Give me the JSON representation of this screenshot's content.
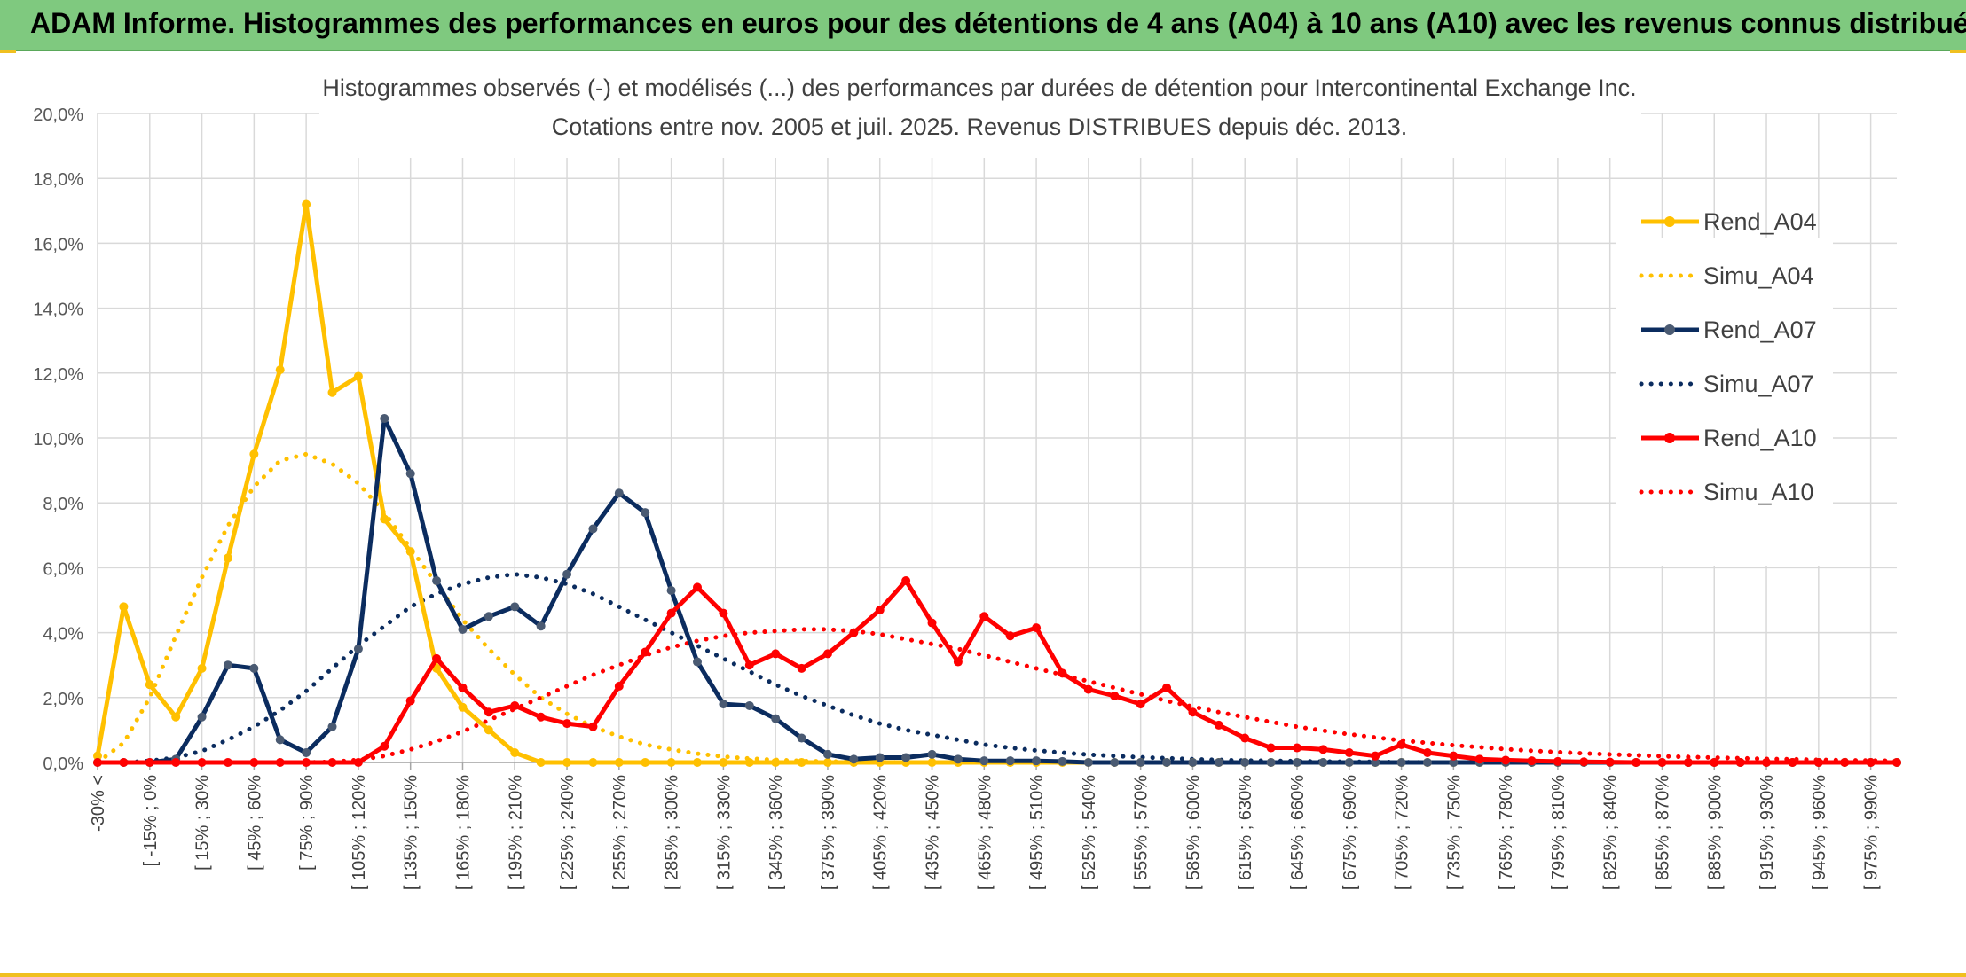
{
  "banner": {
    "title": "ADAM Informe. Histogrammes des performances en euros pour des détentions de 4 ans (A04) à 10 ans (A10) avec les revenus connus distribués"
  },
  "colors": {
    "banner_bg": "#7fc97f",
    "a04": "#ffc000",
    "a07": "#0b2c5f",
    "a10": "#ff0000",
    "a07_marker": "#4a5a72",
    "grid": "#d9d9d9",
    "accent": "#f0c020"
  },
  "chart_data": {
    "type": "line",
    "title": "Histogrammes observés (-) et modélisés (...) des performances par durées de détention pour Intercontinental Exchange Inc.",
    "subtitle": "Cotations entre nov. 2005 et juil. 2025. Revenus DISTRIBUES depuis déc. 2013.",
    "xlabel": "",
    "ylabel": "",
    "ylim": [
      0,
      20
    ],
    "yticks": [
      "0,0%",
      "2,0%",
      "4,0%",
      "6,0%",
      "8,0%",
      "10,0%",
      "12,0%",
      "14,0%",
      "16,0%",
      "18,0%",
      "20,0%"
    ],
    "grid": true,
    "legend_position": "right",
    "x_tick_labels": [
      "-30% <",
      "[ -15% ; 0%",
      "[ 15% ; 30%",
      "[ 45% ; 60%",
      "[ 75% ; 90%",
      "[ 105% ; 120%",
      "[ 135% ; 150%",
      "[ 165% ; 180%",
      "[ 195% ; 210%",
      "[ 225% ; 240%",
      "[ 255% ; 270%",
      "[ 285% ; 300%",
      "[ 315% ; 330%",
      "[ 345% ; 360%",
      "[ 375% ; 390%",
      "[ 405% ; 420%",
      "[ 435% ; 450%",
      "[ 465% ; 480%",
      "[ 495% ; 510%",
      "[ 525% ; 540%",
      "[ 555% ; 570%",
      "[ 585% ; 600%",
      "[ 615% ; 630%",
      "[ 645% ; 660%",
      "[ 675% ; 690%",
      "[ 705% ; 720%",
      "[ 735% ; 750%",
      "[ 765% ; 780%",
      "[ 795% ; 810%",
      "[ 825% ; 840%",
      "[ 855% ; 870%",
      "[ 885% ; 900%",
      "[ 915% ; 930%",
      "[ 945% ; 960%",
      "[ 975% ; 990%"
    ],
    "series": [
      {
        "name": "Rend_A04",
        "style": "solid",
        "color": "#ffc000",
        "values": [
          0.2,
          4.8,
          2.4,
          1.4,
          2.9,
          6.3,
          9.5,
          12.1,
          17.2,
          11.4,
          11.9,
          7.5,
          6.5,
          2.9,
          1.7,
          1.0,
          0.3,
          0.0,
          0,
          0,
          0,
          0,
          0,
          0,
          0,
          0,
          0,
          0,
          0,
          0,
          0,
          0,
          0,
          0,
          0,
          0,
          0,
          0,
          0,
          0,
          0,
          0,
          0,
          0,
          0,
          0,
          0,
          0,
          0,
          0,
          0,
          0,
          0,
          0,
          0,
          0,
          0,
          0,
          0,
          0,
          0,
          0,
          0,
          0,
          0,
          0,
          0,
          0,
          0,
          0
        ]
      },
      {
        "name": "Simu_A04",
        "style": "dotted",
        "color": "#ffc000",
        "values": [
          0.0,
          0.6,
          2.0,
          3.9,
          5.7,
          7.3,
          8.5,
          9.3,
          9.5,
          9.2,
          8.6,
          7.7,
          6.6,
          5.5,
          4.4,
          3.5,
          2.7,
          2.0,
          1.5,
          1.1,
          0.8,
          0.55,
          0.4,
          0.27,
          0.18,
          0.12,
          0.08,
          0.05,
          0.03,
          0.02,
          0.01,
          0,
          0,
          0,
          0,
          0,
          0,
          0,
          0,
          0,
          0,
          0,
          0,
          0,
          0,
          0,
          0,
          0,
          0,
          0,
          0,
          0,
          0,
          0,
          0,
          0,
          0,
          0,
          0,
          0,
          0,
          0,
          0,
          0,
          0,
          0,
          0,
          0,
          0,
          0
        ]
      },
      {
        "name": "Rend_A07",
        "style": "solid",
        "color": "#0b2c5f",
        "values": [
          0,
          0,
          0,
          0.1,
          1.4,
          3.0,
          2.9,
          0.7,
          0.3,
          1.1,
          3.5,
          10.6,
          8.9,
          5.6,
          4.1,
          4.5,
          4.8,
          4.2,
          5.8,
          7.2,
          8.3,
          7.7,
          5.3,
          3.1,
          1.8,
          1.75,
          1.35,
          0.75,
          0.25,
          0.1,
          0.15,
          0.15,
          0.25,
          0.1,
          0.05,
          0.05,
          0.05,
          0.03,
          0,
          0,
          0,
          0,
          0,
          0,
          0,
          0,
          0,
          0,
          0,
          0,
          0,
          0,
          0,
          0,
          0,
          0,
          0,
          0,
          0,
          0,
          0,
          0,
          0,
          0,
          0,
          0,
          0,
          0,
          0,
          0
        ]
      },
      {
        "name": "Simu_A07",
        "style": "dotted",
        "color": "#0b2c5f",
        "values": [
          0.0,
          0.0,
          0.05,
          0.15,
          0.35,
          0.7,
          1.1,
          1.6,
          2.2,
          2.9,
          3.6,
          4.2,
          4.8,
          5.2,
          5.5,
          5.7,
          5.8,
          5.7,
          5.5,
          5.2,
          4.8,
          4.4,
          4.0,
          3.6,
          3.2,
          2.8,
          2.4,
          2.05,
          1.75,
          1.45,
          1.2,
          1.0,
          0.85,
          0.7,
          0.55,
          0.45,
          0.37,
          0.3,
          0.24,
          0.2,
          0.16,
          0.13,
          0.1,
          0.08,
          0.06,
          0.05,
          0.04,
          0.03,
          0.02,
          0.02,
          0.01,
          0,
          0,
          0,
          0,
          0,
          0,
          0,
          0,
          0,
          0,
          0,
          0,
          0,
          0,
          0,
          0,
          0,
          0,
          0
        ]
      },
      {
        "name": "Rend_A10",
        "style": "solid",
        "color": "#ff0000",
        "values": [
          0,
          0,
          0,
          0,
          0,
          0,
          0,
          0,
          0,
          0,
          0,
          0.5,
          1.9,
          3.2,
          2.3,
          1.55,
          1.75,
          1.4,
          1.2,
          1.1,
          2.35,
          3.4,
          4.6,
          5.4,
          4.6,
          3.0,
          3.35,
          2.9,
          3.35,
          4.0,
          4.7,
          5.6,
          4.3,
          3.1,
          4.5,
          3.9,
          4.15,
          2.75,
          2.25,
          2.05,
          1.8,
          2.3,
          1.55,
          1.15,
          0.75,
          0.45,
          0.45,
          0.4,
          0.3,
          0.2,
          0.55,
          0.3,
          0.2,
          0.1,
          0.07,
          0.05,
          0.03,
          0.02,
          0.01,
          0,
          0,
          0,
          0,
          0,
          0,
          0,
          0,
          0,
          0,
          0
        ]
      },
      {
        "name": "Simu_A10",
        "style": "dotted",
        "color": "#ff0000",
        "values": [
          0,
          0,
          0,
          0,
          0,
          0,
          0,
          0,
          0,
          0.02,
          0.08,
          0.2,
          0.4,
          0.65,
          0.95,
          1.3,
          1.65,
          2.0,
          2.35,
          2.7,
          3.0,
          3.3,
          3.55,
          3.75,
          3.9,
          4.0,
          4.05,
          4.1,
          4.1,
          4.05,
          3.95,
          3.8,
          3.65,
          3.5,
          3.3,
          3.1,
          2.9,
          2.7,
          2.5,
          2.3,
          2.1,
          1.9,
          1.72,
          1.55,
          1.4,
          1.25,
          1.1,
          0.98,
          0.87,
          0.77,
          0.68,
          0.6,
          0.53,
          0.47,
          0.41,
          0.36,
          0.32,
          0.28,
          0.25,
          0.22,
          0.19,
          0.17,
          0.15,
          0.13,
          0.11,
          0.1,
          0.08,
          0.07,
          0.06,
          0.05
        ]
      }
    ]
  }
}
